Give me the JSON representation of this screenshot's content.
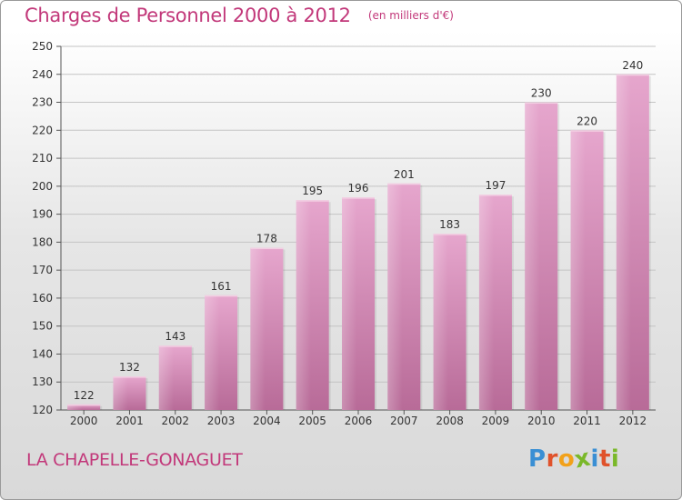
{
  "header": {
    "title": "Charges de Personnel 2000 à 2012",
    "unit": "(en milliers d'€)"
  },
  "footer": {
    "place": "LA CHAPELLE-GONAGUET",
    "logo": {
      "letters": [
        "P",
        "r",
        "o",
        "x",
        "i",
        "t",
        "i"
      ],
      "colors": [
        "#3a8fd4",
        "#e0522b",
        "#f2a11a",
        "#7ab829",
        "#3a8fd4",
        "#e0522b",
        "#7ab829"
      ]
    }
  },
  "chart_data": {
    "type": "bar",
    "title": "Charges de Personnel 2000 à 2012",
    "subtitle": "(en milliers d'€)",
    "categories": [
      "2000",
      "2001",
      "2002",
      "2003",
      "2004",
      "2005",
      "2006",
      "2007",
      "2008",
      "2009",
      "2010",
      "2011",
      "2012"
    ],
    "values": [
      122,
      132,
      143,
      161,
      178,
      195,
      196,
      201,
      183,
      197,
      230,
      220,
      240
    ],
    "ylim": [
      120,
      250
    ],
    "yticks": [
      120,
      130,
      140,
      150,
      160,
      170,
      180,
      190,
      200,
      210,
      220,
      230,
      240,
      250
    ],
    "grid": true,
    "data_labels": true,
    "colors": {
      "bar_top": "#e6a6cd",
      "bar_bottom": "#b86b98",
      "title": "#c2387a"
    }
  }
}
